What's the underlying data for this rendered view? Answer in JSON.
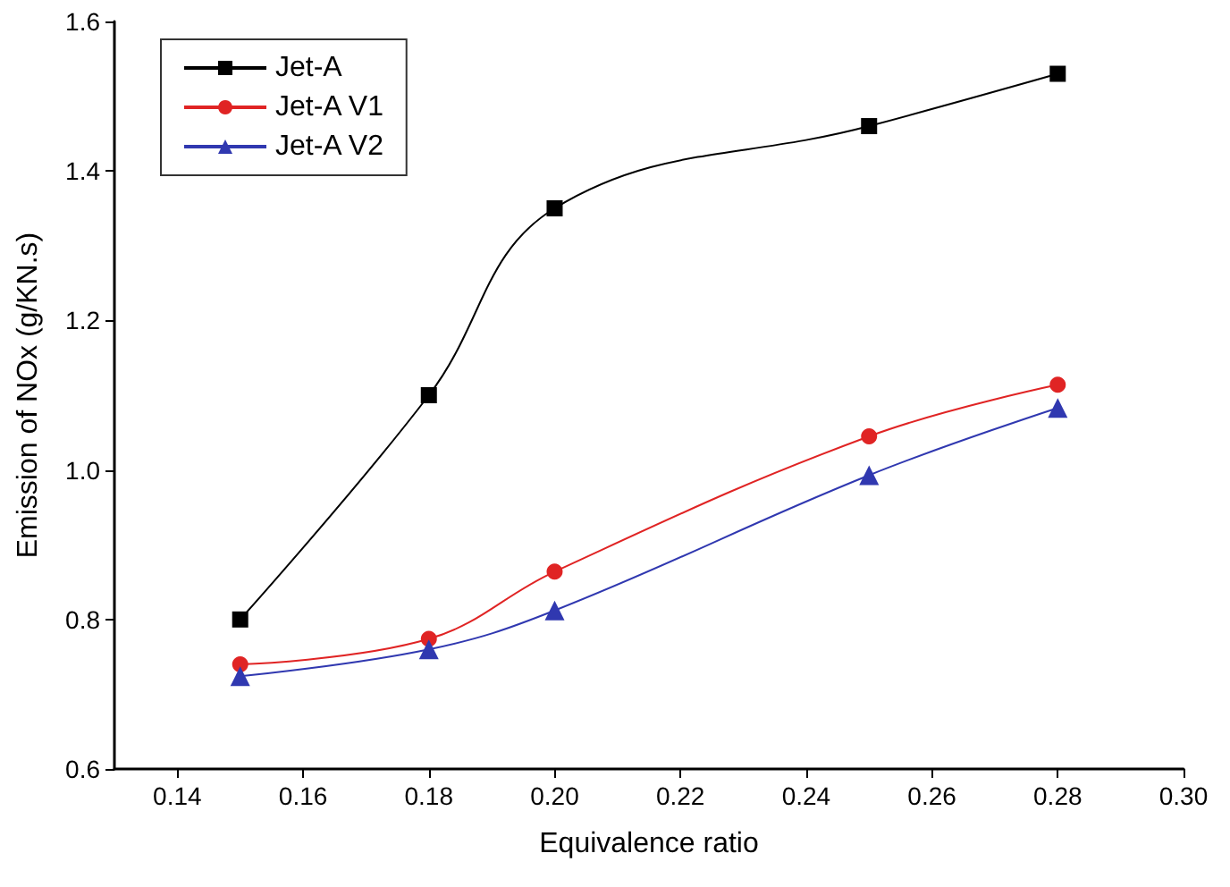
{
  "chart_data": {
    "type": "line",
    "xlabel": "Equivalence ratio",
    "ylabel": "Emission of NOx (g/KN.s)",
    "x": [
      0.15,
      0.18,
      0.2,
      0.25,
      0.28
    ],
    "series": [
      {
        "name": "Jet-A",
        "color": "#000000",
        "marker": "square",
        "values": [
          0.8,
          1.1,
          1.35,
          1.46,
          1.53
        ]
      },
      {
        "name": "Jet-A V1",
        "color": "#e02424",
        "marker": "circle",
        "values": [
          0.74,
          0.774,
          0.864,
          1.045,
          1.114
        ]
      },
      {
        "name": "Jet-A V2",
        "color": "#3038b0",
        "marker": "triangle",
        "values": [
          0.724,
          0.76,
          0.812,
          0.993,
          1.083
        ]
      }
    ],
    "xlim": [
      0.13,
      0.3
    ],
    "xticks": [
      0.14,
      0.16,
      0.18,
      {
        "value": 0.2,
        "label": "0.20"
      },
      0.22,
      0.24,
      0.26,
      0.28,
      {
        "value": 0.3,
        "label": "0.30"
      }
    ],
    "ylim": [
      0.6,
      1.6
    ],
    "yticks": [
      0.6,
      0.8,
      {
        "value": 1.0,
        "label": "1.0"
      },
      1.2,
      1.4,
      1.6
    ],
    "grid": false,
    "legend": "top left",
    "line_style": "solid"
  }
}
